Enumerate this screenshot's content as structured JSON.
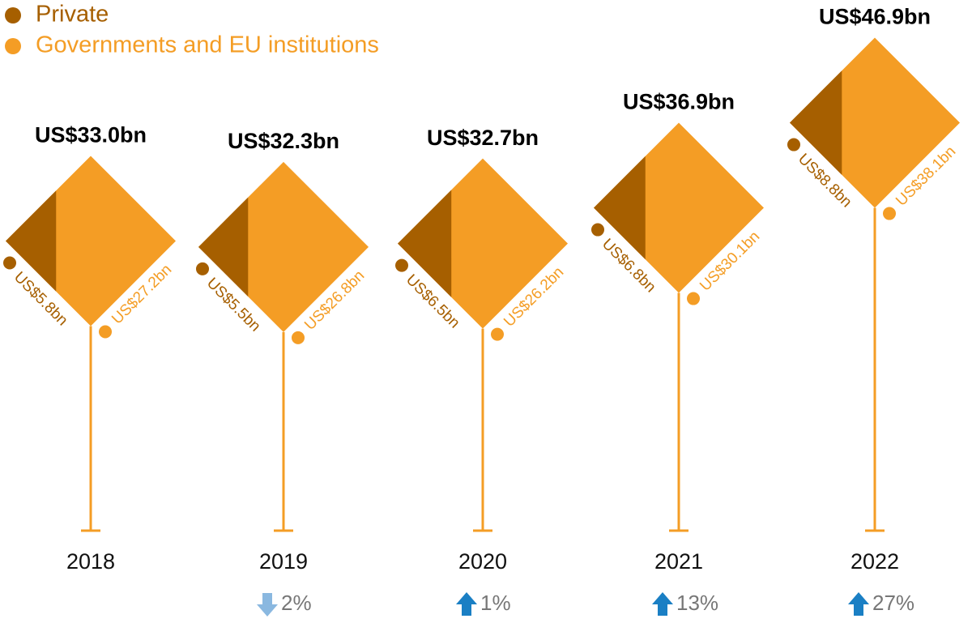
{
  "chart_data": {
    "type": "diamond",
    "categories": [
      "2018",
      "2019",
      "2020",
      "2021",
      "2022"
    ],
    "series": [
      {
        "name": "Private",
        "color": "#a65f00",
        "values": [
          5.8,
          5.5,
          6.5,
          6.8,
          8.8
        ],
        "value_labels": [
          "US$5.8bn",
          "US$5.5bn",
          "US$6.5bn",
          "US$6.8bn",
          "US$8.8bn"
        ]
      },
      {
        "name": "Governments and EU institutions",
        "color": "#f49d25",
        "values": [
          27.2,
          26.8,
          26.2,
          30.1,
          38.1
        ],
        "value_labels": [
          "US$27.2bn",
          "US$26.8bn",
          "US$26.2bn",
          "US$30.1bn",
          "US$38.1bn"
        ]
      }
    ],
    "totals": {
      "values": [
        33.0,
        32.3,
        32.7,
        36.9,
        46.9
      ],
      "value_labels": [
        "US$33.0bn",
        "US$32.3bn",
        "US$32.7bn",
        "US$36.9bn",
        "US$46.9bn"
      ]
    },
    "change": {
      "values": [
        null,
        -2,
        1,
        13,
        27
      ],
      "value_labels": [
        null,
        "2%",
        "1%",
        "13%",
        "27%"
      ],
      "up_color": "#1a7fc4",
      "down_color": "#8ab8e0"
    }
  }
}
